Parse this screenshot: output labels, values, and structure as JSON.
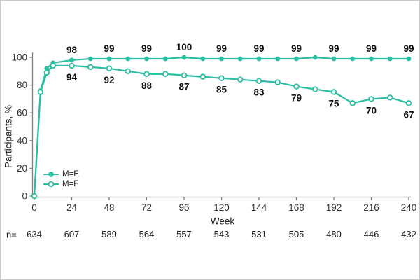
{
  "chart_data": {
    "type": "line",
    "title": "",
    "xlabel": "Week",
    "ylabel": "Participants, %",
    "xlim": [
      0,
      240
    ],
    "ylim": [
      0,
      100
    ],
    "grid": false,
    "legend_position": "inside-bottom-left",
    "x_ticks": [
      0,
      24,
      48,
      72,
      96,
      120,
      144,
      168,
      192,
      216,
      240
    ],
    "y_ticks": [
      0,
      20,
      40,
      60,
      80,
      100
    ],
    "x": [
      0,
      4,
      8,
      12,
      24,
      36,
      48,
      60,
      72,
      84,
      96,
      108,
      120,
      132,
      144,
      156,
      168,
      180,
      192,
      204,
      216,
      228,
      240
    ],
    "series": [
      {
        "name": "M=E",
        "marker": "filled-circle",
        "values": [
          0,
          76,
          92,
          96,
          98,
          99,
          99,
          99,
          99,
          99,
          100,
          99,
          99,
          99,
          99,
          99,
          99,
          100,
          99,
          99,
          99,
          99,
          99
        ],
        "labels_at_ticks": [
          "98",
          "99",
          "99",
          "100",
          "99",
          "99",
          "99",
          "99",
          "99",
          "99"
        ]
      },
      {
        "name": "M=F",
        "marker": "open-circle",
        "values": [
          0,
          75,
          89,
          94,
          94,
          93,
          92,
          90,
          88,
          88,
          87,
          86,
          85,
          84,
          83,
          82,
          79,
          77,
          75,
          67,
          70,
          71,
          67
        ],
        "labels_at_ticks": [
          "94",
          "92",
          "88",
          "87",
          "85",
          "83",
          "79",
          "75",
          "70",
          "67"
        ]
      }
    ],
    "n_row": {
      "label": "n=",
      "values": [
        "634",
        "607",
        "589",
        "564",
        "557",
        "543",
        "531",
        "505",
        "480",
        "446",
        "432"
      ]
    },
    "colors": {
      "series_line": "#2ABEA3",
      "axis": "#808080",
      "tick_text": "#333333",
      "data_label": "#111111"
    }
  }
}
